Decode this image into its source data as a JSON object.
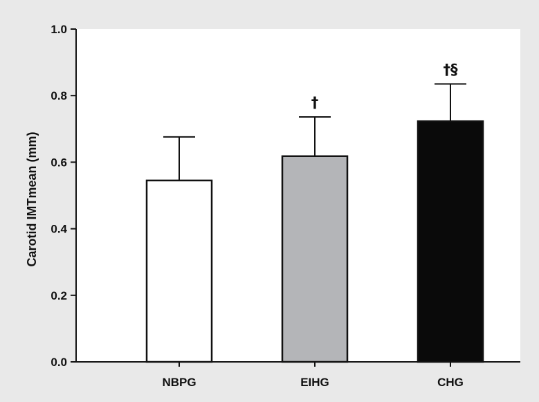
{
  "chart_data": {
    "type": "bar",
    "categories": [
      "NBPG",
      "EIHG",
      "CHG"
    ],
    "values": [
      0.545,
      0.618,
      0.723
    ],
    "error_plus": [
      0.131,
      0.118,
      0.112
    ],
    "annotations": [
      "",
      "†",
      "†§"
    ],
    "bar_colors": [
      "#ffffff",
      "#b4b5b8",
      "#0a0a0a"
    ],
    "xlabel": "",
    "ylabel": "Carotid IMTmean (mm)",
    "ylim": [
      0,
      1.0
    ],
    "yticks": [
      0.0,
      0.2,
      0.4,
      0.6,
      0.8,
      1.0
    ],
    "ytick_labels": [
      "0.0",
      "0.2",
      "0.4",
      "0.6",
      "0.8",
      "1.0"
    ],
    "grid": false,
    "background": "#e9e9e9",
    "plot_background": "#ffffff"
  }
}
